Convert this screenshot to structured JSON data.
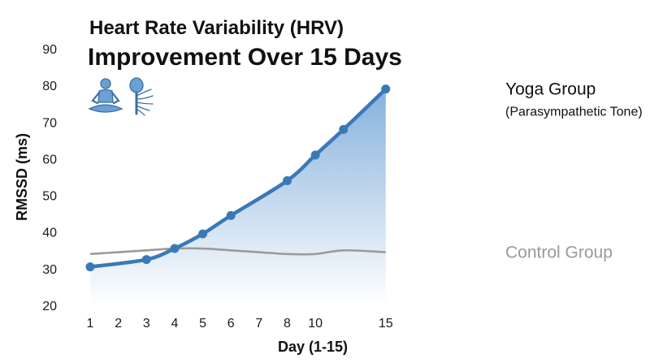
{
  "chart_data": {
    "type": "area",
    "title": "Heart Rate Variability (HRV)",
    "subtitle": "Improvement Over 15 Days",
    "xlabel": "Day (1-15)",
    "ylabel": "RMSSD (ms)",
    "xlim": [
      1,
      15
    ],
    "ylim": [
      20,
      90
    ],
    "x_ticks": [
      1,
      2,
      3,
      4,
      5,
      6,
      7,
      8,
      10,
      15
    ],
    "x_tick_positions": [
      1,
      2,
      3,
      4,
      5,
      6,
      7,
      8,
      9,
      11.5
    ],
    "y_ticks": [
      20,
      30,
      40,
      50,
      60,
      70,
      80,
      90
    ],
    "grid": false,
    "series": [
      {
        "name": "Yoga Group",
        "sublabel": "(Parasympathetic Tone)",
        "color": "#3a79b8",
        "fill_color": "#7fb0de",
        "marker": "circle",
        "x": [
          1,
          3,
          4,
          5,
          6,
          8,
          9,
          10,
          11.5
        ],
        "values": [
          30.5,
          32.5,
          35.5,
          39.5,
          44.5,
          54,
          61,
          68,
          79
        ]
      },
      {
        "name": "Control Group",
        "color": "#9a9a9a",
        "marker": "none",
        "x": [
          1,
          2,
          3,
          4,
          5,
          6,
          7,
          8,
          9,
          10,
          11.5
        ],
        "values": [
          34,
          34.5,
          35,
          35.5,
          35.5,
          35,
          34.5,
          34,
          34,
          35,
          34.5
        ]
      }
    ]
  },
  "icons": [
    "meditating-person-icon",
    "vagus-nerve-icon"
  ]
}
